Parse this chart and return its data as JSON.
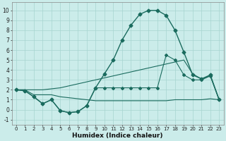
{
  "xlabel": "Humidex (Indice chaleur)",
  "background_color": "#cbecea",
  "grid_color": "#a6d5d0",
  "line_color": "#1a6b5e",
  "xlim": [
    -0.5,
    23.5
  ],
  "ylim": [
    -1.5,
    10.8
  ],
  "xticks": [
    0,
    1,
    2,
    3,
    4,
    5,
    6,
    7,
    8,
    9,
    10,
    11,
    12,
    13,
    14,
    15,
    16,
    17,
    18,
    19,
    20,
    21,
    22,
    23
  ],
  "yticks": [
    -1,
    0,
    1,
    2,
    3,
    4,
    5,
    6,
    7,
    8,
    9,
    10
  ],
  "line1_y": [
    2.0,
    1.9,
    1.3,
    0.6,
    1.0,
    -0.1,
    -0.3,
    -0.2,
    0.4,
    2.2,
    3.6,
    5.0,
    7.0,
    8.5,
    9.6,
    10.0,
    10.0,
    9.5,
    8.0,
    5.8,
    3.5,
    3.1,
    3.5,
    1.0
  ],
  "line2_y": [
    2.0,
    1.9,
    1.3,
    0.6,
    1.0,
    -0.1,
    -0.3,
    -0.2,
    0.4,
    2.2,
    2.2,
    2.2,
    2.2,
    2.2,
    2.2,
    2.2,
    2.2,
    5.5,
    5.0,
    3.5,
    3.0,
    3.0,
    3.4,
    1.0
  ],
  "line3_y": [
    2.0,
    2.0,
    2.0,
    2.0,
    2.1,
    2.2,
    2.4,
    2.6,
    2.8,
    3.0,
    3.2,
    3.4,
    3.6,
    3.8,
    4.0,
    4.2,
    4.4,
    4.6,
    4.8,
    5.0,
    3.6,
    3.1,
    3.4,
    1.0
  ],
  "line4_y": [
    2.0,
    2.0,
    1.5,
    1.5,
    1.5,
    1.3,
    1.2,
    1.1,
    1.0,
    0.9,
    0.9,
    0.9,
    0.9,
    0.9,
    0.9,
    0.9,
    0.9,
    0.9,
    1.0,
    1.0,
    1.0,
    1.0,
    1.1,
    1.0
  ]
}
